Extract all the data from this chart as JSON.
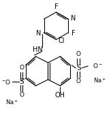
{
  "bg_color": "#ffffff",
  "line_color": "#000000",
  "text_color": "#000000",
  "figsize": [
    1.63,
    1.69
  ],
  "dpi": 100,
  "xlim": [
    0,
    163
  ],
  "ylim": [
    0,
    169
  ]
}
